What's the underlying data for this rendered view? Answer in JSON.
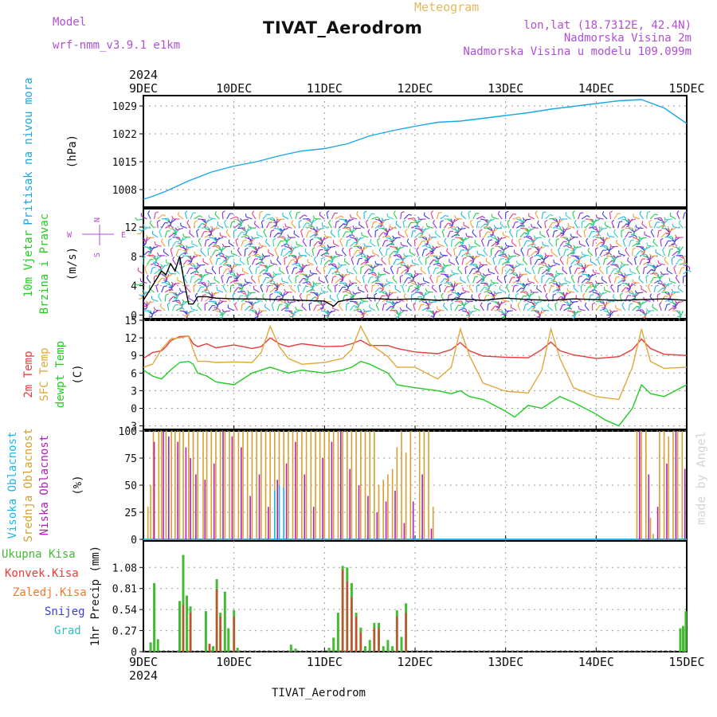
{
  "header": {
    "model_label": "Model",
    "model_name": "wrf-nmm_v3.9.1 e1km",
    "product": "Meteogram",
    "station": "TIVAT_Aerodrom",
    "lonlat": "lon,lat (18.7312E, 42.4N)",
    "elevation": "Nadmorska Visina 2m",
    "model_elevation": "Nadmorska Visina u modelu 109.099m",
    "footer_station": "TIVAT_Aerodrom",
    "credit": "made by Angel"
  },
  "colors": {
    "pressure": "#1aa7e8",
    "temp2m": "#e83a3a",
    "sfc_temp": "#e0a83a",
    "dewpt": "#22cc22",
    "high_cloud": "#1ab8e8",
    "mid_cloud": "#d8a030",
    "low_cloud": "#b020b8",
    "total_precip": "#44bb33",
    "conv_precip": "#e83a3a",
    "freezing_precip": "#f07a2a",
    "snow": "#3a3ae8",
    "graupel": "#2ac0c0",
    "header_purple": "#b04fd6",
    "header_orange": "#e7b85b"
  },
  "chart_data": [
    {
      "type": "line",
      "panel": "pressure",
      "x_top_labels": [
        "9DEC",
        "10DEC",
        "11DEC",
        "12DEC",
        "13DEC",
        "14DEC",
        "15DEC"
      ],
      "year": "2024",
      "ylabel_side": "Pritisak na nivou mora",
      "ylabel_unit": "(hPa)",
      "yticks": [
        1008,
        1015,
        1022,
        1029
      ],
      "ylim": [
        1003.6,
        1031.6
      ],
      "series": [
        {
          "key": "pressure",
          "x": [
            0,
            0.1,
            0.25,
            0.5,
            0.75,
            1,
            1.25,
            1.5,
            1.75,
            2,
            2.25,
            2.5,
            2.75,
            3,
            3.25,
            3.5,
            3.75,
            4,
            4.25,
            4.5,
            4.75,
            5,
            5.25,
            5.5,
            5.75,
            6
          ],
          "values": [
            1005.6,
            1006.3,
            1007.6,
            1010.2,
            1012.4,
            1013.9,
            1015.0,
            1016.5,
            1017.7,
            1018.3,
            1019.5,
            1021.5,
            1022.8,
            1023.9,
            1024.9,
            1025.2,
            1025.9,
            1026.6,
            1027.3,
            1028.2,
            1028.9,
            1029.6,
            1030.3,
            1030.6,
            1028.5,
            1024.6
          ]
        }
      ]
    },
    {
      "type": "line",
      "panel": "wind",
      "ylabel_side_1": "10m Vjetar",
      "ylabel_side_2": "Brzina i Pravac",
      "ylabel_unit": "(m/s)",
      "compass_n": "N",
      "compass_s": "S",
      "compass_w": "W",
      "compass_e": "E",
      "yticks": [
        0,
        4,
        8,
        12
      ],
      "ylim": [
        -0.5,
        14.5
      ],
      "series": [
        {
          "key": "wind_speed",
          "x": [
            0,
            0.1,
            0.15,
            0.2,
            0.25,
            0.3,
            0.35,
            0.4,
            0.45,
            0.5,
            0.55,
            0.6,
            0.7,
            0.8,
            1,
            1.25,
            1.5,
            1.75,
            2,
            2.1,
            2.15,
            2.25,
            2.5,
            2.75,
            3,
            3.25,
            3.5,
            3.75,
            4,
            4.25,
            4.5,
            4.75,
            5,
            5.25,
            5.5,
            5.75,
            6
          ],
          "values": [
            2,
            4,
            5,
            6,
            5.5,
            7,
            6,
            8,
            4.5,
            1.5,
            1.5,
            2.5,
            2.5,
            2.3,
            2.2,
            2.2,
            2.1,
            2.0,
            1.9,
            1.2,
            1.8,
            2.1,
            2.3,
            2.1,
            2.2,
            2.0,
            2.2,
            2.0,
            2.3,
            2.1,
            2.0,
            2.2,
            2.1,
            2.0,
            2.1,
            2.2,
            2.0
          ]
        }
      ]
    },
    {
      "type": "line",
      "panel": "temperature",
      "ylabel_side_1": "2m Temp",
      "ylabel_side_2": "SFC Temp",
      "ylabel_side_3": "dewpt Temp",
      "ylabel_unit": "(C)",
      "yticks": [
        -3,
        0,
        3,
        6,
        9,
        12,
        15
      ],
      "ylim": [
        -3.6,
        15.0
      ],
      "series": [
        {
          "key": "temp2m",
          "x": [
            0,
            0.1,
            0.2,
            0.25,
            0.3,
            0.4,
            0.5,
            0.55,
            0.6,
            0.7,
            0.8,
            1,
            1.2,
            1.3,
            1.4,
            1.5,
            1.6,
            1.75,
            2,
            2.2,
            2.3,
            2.4,
            2.5,
            2.7,
            2.8,
            3,
            3.25,
            3.4,
            3.5,
            3.6,
            3.75,
            4,
            4.25,
            4.4,
            4.5,
            4.6,
            4.75,
            5,
            5.25,
            5.4,
            5.5,
            5.6,
            5.75,
            6
          ],
          "values": [
            8.5,
            9.5,
            9.8,
            10.5,
            11.5,
            12.2,
            12.3,
            11.0,
            10.5,
            11.0,
            10.3,
            10.8,
            10.2,
            10.5,
            12.0,
            11.0,
            10.5,
            11.0,
            10.5,
            10.6,
            11.0,
            11.6,
            10.7,
            10.7,
            10.2,
            9.6,
            9.3,
            10.0,
            11.2,
            9.8,
            8.9,
            8.7,
            8.6,
            10.0,
            11.3,
            9.8,
            9.1,
            8.5,
            8.8,
            10.0,
            11.8,
            10.2,
            9.2,
            9.0
          ]
        },
        {
          "key": "sfc_temp",
          "x": [
            0,
            0.1,
            0.2,
            0.3,
            0.4,
            0.5,
            0.55,
            0.6,
            0.7,
            0.8,
            1,
            1.2,
            1.3,
            1.4,
            1.5,
            1.6,
            1.75,
            2,
            2.2,
            2.3,
            2.4,
            2.5,
            2.7,
            2.8,
            3,
            3.25,
            3.4,
            3.5,
            3.6,
            3.75,
            4,
            4.25,
            4.4,
            4.5,
            4.6,
            4.75,
            5,
            5.25,
            5.4,
            5.5,
            5.6,
            5.75,
            6
          ],
          "values": [
            7,
            7.5,
            10,
            11.8,
            12.0,
            12.3,
            10.0,
            8.0,
            8.0,
            7.8,
            7.9,
            7.8,
            9.5,
            14.0,
            10.5,
            8.5,
            7.5,
            7.8,
            8.5,
            10.0,
            14.0,
            11.0,
            8.8,
            7.0,
            7.0,
            5.0,
            7.0,
            13.5,
            9.0,
            4.3,
            2.9,
            2.6,
            6.5,
            13.5,
            8.5,
            3.5,
            2.0,
            1.5,
            7.0,
            13.5,
            8.0,
            6.8,
            7.0
          ]
        },
        {
          "key": "dewpt",
          "x": [
            0,
            0.1,
            0.2,
            0.3,
            0.4,
            0.5,
            0.55,
            0.6,
            0.7,
            0.8,
            1,
            1.2,
            1.3,
            1.4,
            1.5,
            1.6,
            1.75,
            2,
            2.2,
            2.3,
            2.4,
            2.5,
            2.7,
            2.8,
            3,
            3.25,
            3.4,
            3.5,
            3.6,
            3.75,
            4,
            4.1,
            4.25,
            4.4,
            4.5,
            4.6,
            4.75,
            5,
            5.1,
            5.25,
            5.4,
            5.5,
            5.6,
            5.75,
            6
          ],
          "values": [
            6.5,
            5.5,
            5.0,
            6.5,
            7.8,
            8.0,
            7.5,
            6.0,
            5.5,
            4.5,
            4.0,
            6.0,
            6.5,
            7.0,
            6.5,
            6.0,
            6.5,
            6.0,
            6.5,
            7.0,
            8.0,
            7.5,
            6.0,
            4.0,
            3.5,
            3.0,
            2.5,
            3.0,
            2.0,
            1.5,
            -0.5,
            -1.5,
            0.5,
            0.0,
            1.0,
            2.0,
            1.0,
            -1.0,
            -2.0,
            -3.0,
            0.0,
            4.0,
            2.5,
            2.0,
            4.0
          ]
        }
      ]
    },
    {
      "type": "bar",
      "panel": "cloud",
      "ylabel_side_1": "Visoka Oblacnost",
      "ylabel_side_2": "Srednja Oblacnost",
      "ylabel_side_3": "Niska Oblacnost",
      "ylabel_unit": "(%)",
      "yticks": [
        0,
        25,
        50,
        75,
        100
      ],
      "ylim": [
        0,
        100
      ],
      "series": [
        {
          "key": "mid_cloud",
          "x": [
            0.05,
            0.08,
            0.11,
            0.17,
            0.2,
            0.25,
            0.31,
            0.35,
            0.4,
            0.44,
            0.5,
            0.55,
            0.6,
            0.66,
            0.7,
            0.75,
            0.8,
            0.85,
            0.9,
            0.95,
            1.0,
            1.05,
            1.1,
            1.15,
            1.2,
            1.25,
            1.3,
            1.35,
            1.4,
            1.45,
            1.5,
            1.55,
            1.6,
            1.65,
            1.7,
            1.75,
            1.8,
            1.85,
            1.9,
            1.95,
            2.0,
            2.05,
            2.1,
            2.15,
            2.2,
            2.25,
            2.3,
            2.35,
            2.4,
            2.45,
            2.5,
            2.55,
            2.6,
            2.65,
            2.7,
            2.75,
            2.8,
            2.85,
            2.9,
            2.95,
            3.05,
            3.1,
            3.15,
            3.2,
            5.45,
            5.5,
            5.55,
            5.6,
            5.63,
            5.7,
            5.75,
            5.8,
            5.85,
            5.9,
            5.95
          ],
          "values": [
            30,
            50,
            100,
            100,
            100,
            100,
            100,
            100,
            100,
            100,
            100,
            100,
            100,
            100,
            100,
            100,
            100,
            100,
            100,
            100,
            100,
            100,
            100,
            100,
            100,
            100,
            100,
            100,
            100,
            100,
            100,
            100,
            100,
            100,
            100,
            100,
            100,
            100,
            100,
            100,
            100,
            100,
            100,
            100,
            100,
            100,
            100,
            100,
            100,
            100,
            100,
            100,
            50,
            55,
            60,
            65,
            85,
            100,
            80,
            100,
            100,
            100,
            100,
            30,
            100,
            100,
            100,
            20,
            5,
            100,
            100,
            95,
            100,
            100,
            100
          ]
        },
        {
          "key": "low_cloud",
          "x": [
            0.12,
            0.22,
            0.28,
            0.38,
            0.47,
            0.52,
            0.58,
            0.68,
            0.78,
            0.88,
            0.98,
            1.08,
            1.18,
            1.28,
            1.38,
            1.48,
            1.58,
            1.68,
            1.78,
            1.88,
            1.98,
            2.08,
            2.18,
            2.28,
            2.38,
            2.48,
            2.58,
            2.68,
            2.78,
            2.88,
            2.98,
            3.08,
            3.18,
            5.48,
            5.58,
            5.68,
            5.78,
            5.88,
            5.98
          ],
          "values": [
            90,
            100,
            95,
            90,
            85,
            75,
            60,
            55,
            70,
            100,
            95,
            85,
            40,
            60,
            30,
            55,
            70,
            90,
            60,
            30,
            75,
            90,
            100,
            65,
            50,
            40,
            25,
            35,
            45,
            15,
            35,
            60,
            10,
            100,
            60,
            30,
            70,
            100,
            65
          ]
        },
        {
          "key": "high_cloud",
          "x": [
            1.45,
            1.5,
            1.55
          ],
          "values": [
            45,
            50,
            48
          ]
        }
      ]
    },
    {
      "type": "bar",
      "panel": "precip",
      "legend": [
        "Ukupna Kisa",
        "Konvek.Kisa",
        "Zaledj.Kisa",
        "Snijeg",
        "Grad"
      ],
      "ylabel_unit": "1hr Precip (mm)",
      "yticks": [
        0,
        0.27,
        0.54,
        0.81,
        1.08
      ],
      "ylim": [
        0,
        1.42
      ],
      "x_bottom_labels": [
        "9DEC",
        "10DEC",
        "11DEC",
        "12DEC",
        "13DEC",
        "14DEC",
        "15DEC"
      ],
      "series": [
        {
          "key": "total_precip",
          "x": [
            0.08,
            0.12,
            0.16,
            0.4,
            0.44,
            0.48,
            0.52,
            0.69,
            0.73,
            0.77,
            0.81,
            0.85,
            0.9,
            0.94,
            1.0,
            1.04,
            1.63,
            1.68,
            2.05,
            2.1,
            2.15,
            2.2,
            2.25,
            2.3,
            2.35,
            2.4,
            2.45,
            2.5,
            2.55,
            2.6,
            2.65,
            2.7,
            2.75,
            2.8,
            2.85,
            2.9,
            5.93,
            5.96,
            5.99
          ],
          "values": [
            0.12,
            0.88,
            0.16,
            0.65,
            1.24,
            0.72,
            0.58,
            0.52,
            0.1,
            0.07,
            0.93,
            0.5,
            0.77,
            0.3,
            0.53,
            0.05,
            0.09,
            0.04,
            0.05,
            0.18,
            0.5,
            1.1,
            1.08,
            0.88,
            0.5,
            0.31,
            0.07,
            0.15,
            0.37,
            0.37,
            0.07,
            0.15,
            0.07,
            0.53,
            0.19,
            0.62,
            0.3,
            0.33,
            0.52
          ]
        },
        {
          "key": "conv_precip",
          "x": [
            0.44,
            0.52,
            0.73,
            0.81,
            0.85,
            1.0,
            2.2,
            2.25,
            2.3,
            2.35,
            2.4,
            2.55,
            2.6,
            2.8,
            2.9
          ],
          "values": [
            0.6,
            0.5,
            0.1,
            0.8,
            0.45,
            0.45,
            1.05,
            0.9,
            0.7,
            0.45,
            0.25,
            0.3,
            0.3,
            0.45,
            0.5
          ]
        }
      ]
    }
  ]
}
